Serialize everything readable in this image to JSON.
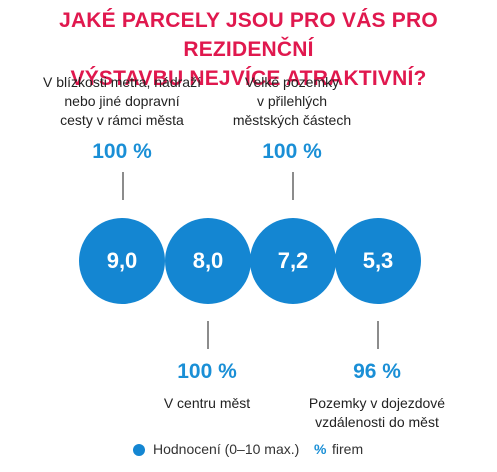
{
  "chart_data": {
    "type": "bubble",
    "title": "JAKÉ PARCELY JSOU PRO VÁS PRO REZIDENČNÍ VÝSTAVBU NEJVÍCE ATRAKTIVNÍ?",
    "title_lines": [
      "JAKÉ PARCELY JSOU PRO VÁS PRO REZIDENČNÍ",
      "VÝSTAVBU NEJVÍCE ATRAKTIVNÍ?"
    ],
    "items": [
      {
        "label_lines": [
          "V blízkosti metra, nádraží",
          "nebo jiné dopravní",
          "cesty v rámci města"
        ],
        "rating": "9,0",
        "percent": "100 %",
        "label_position": "top"
      },
      {
        "label_lines": [
          "V centru měst"
        ],
        "rating": "8,0",
        "percent": "100 %",
        "label_position": "bottom"
      },
      {
        "label_lines": [
          "Velké pozemky",
          "v přilehlých",
          "městských částech"
        ],
        "rating": "7,2",
        "percent": "100 %",
        "label_position": "top"
      },
      {
        "label_lines": [
          "Pozemky v dojezdové",
          "vzdálenosti do měst"
        ],
        "rating": "5,3",
        "percent": "96 %",
        "label_position": "bottom"
      }
    ],
    "legend": {
      "rating": "Hodnocení (0–10 max.)",
      "percent_symbol": "%",
      "percent": "firem"
    },
    "colors": {
      "title": "#e0184e",
      "circle": "#1486d2",
      "percent": "#1a8fd6"
    }
  }
}
